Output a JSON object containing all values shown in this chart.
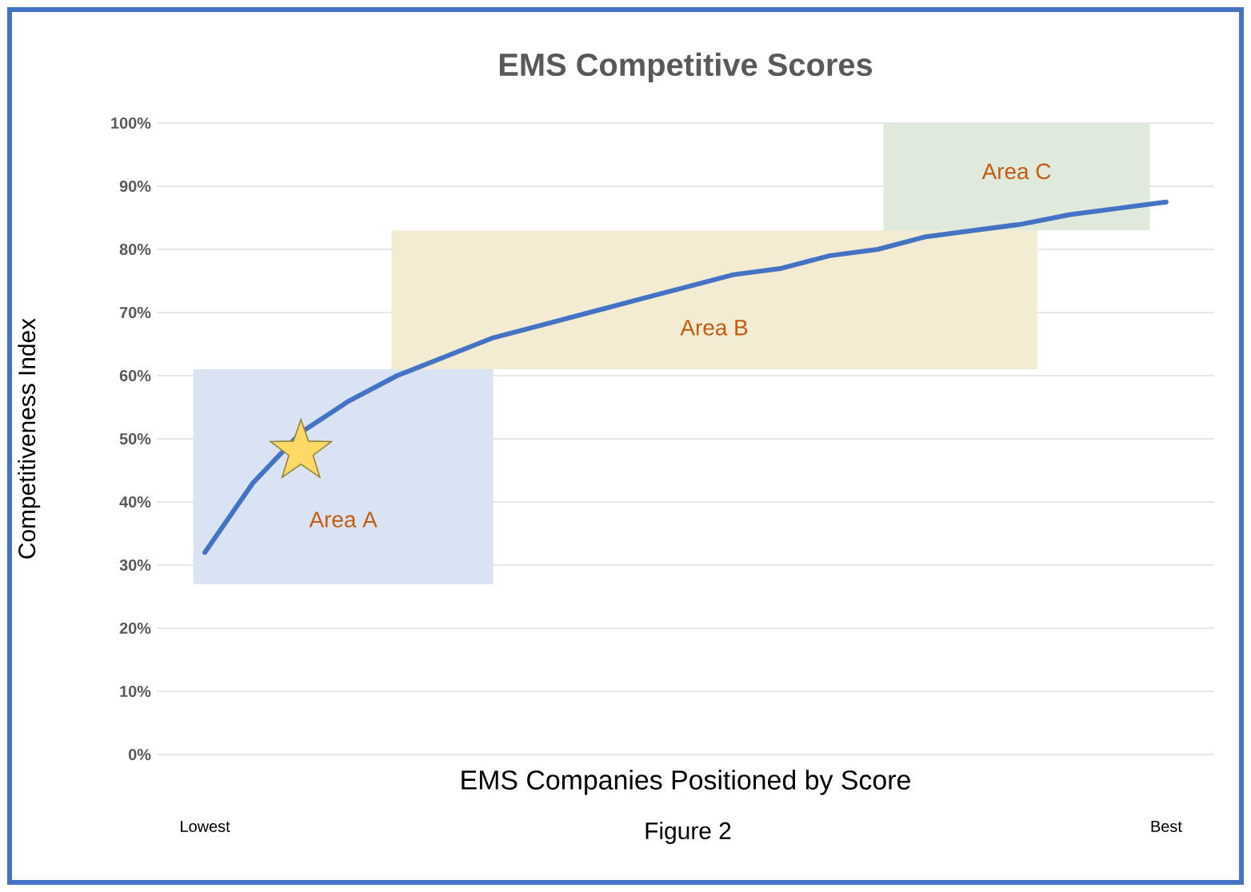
{
  "chart_data": {
    "type": "line",
    "title": "EMS Competitive Scores",
    "xlabel": "EMS Companies Positioned by Score",
    "ylabel": "Competitiveness Index",
    "categories": [
      "Lowest",
      null,
      null,
      null,
      null,
      null,
      null,
      null,
      null,
      null,
      null,
      null,
      null,
      null,
      null,
      null,
      null,
      null,
      null,
      null,
      "Best"
    ],
    "ylim": [
      0,
      100
    ],
    "yticks": [
      {
        "value": 0,
        "label": "0%"
      },
      {
        "value": 10,
        "label": "10%"
      },
      {
        "value": 20,
        "label": "20%"
      },
      {
        "value": 30,
        "label": "30%"
      },
      {
        "value": 40,
        "label": "40%"
      },
      {
        "value": 50,
        "label": "50%"
      },
      {
        "value": 60,
        "label": "60%"
      },
      {
        "value": 70,
        "label": "70%"
      },
      {
        "value": 80,
        "label": "80%"
      },
      {
        "value": 90,
        "label": "90%"
      },
      {
        "value": 100,
        "label": "100%"
      }
    ],
    "grid": "y",
    "bands": [
      {
        "axis": "y",
        "from": 27,
        "to": 61,
        "label": "Area A",
        "color": "#dae3f3"
      },
      {
        "axis": "y",
        "from": 61,
        "to": 83,
        "label": "Area B",
        "color": "#f3ecd3"
      },
      {
        "axis": "y",
        "from": 83,
        "to": 100,
        "label": "Area C",
        "color": "#dfeadc"
      }
    ],
    "series": [
      {
        "color": "#4472c4",
        "values": [
          32,
          43,
          51,
          56,
          60,
          63,
          66,
          68,
          70,
          72,
          74,
          76,
          77,
          79,
          80,
          82,
          83,
          84,
          85.5,
          86.5,
          87.5
        ]
      },
      {
        "type": "scatter",
        "color": "#ffd966",
        "marker": "star",
        "values": [
          null,
          null,
          48,
          null,
          null,
          null,
          null,
          null,
          null,
          null,
          null,
          null,
          null,
          null,
          null,
          null,
          null,
          null,
          null,
          null,
          null
        ]
      }
    ],
    "annotations": [
      "Figure 2"
    ]
  }
}
